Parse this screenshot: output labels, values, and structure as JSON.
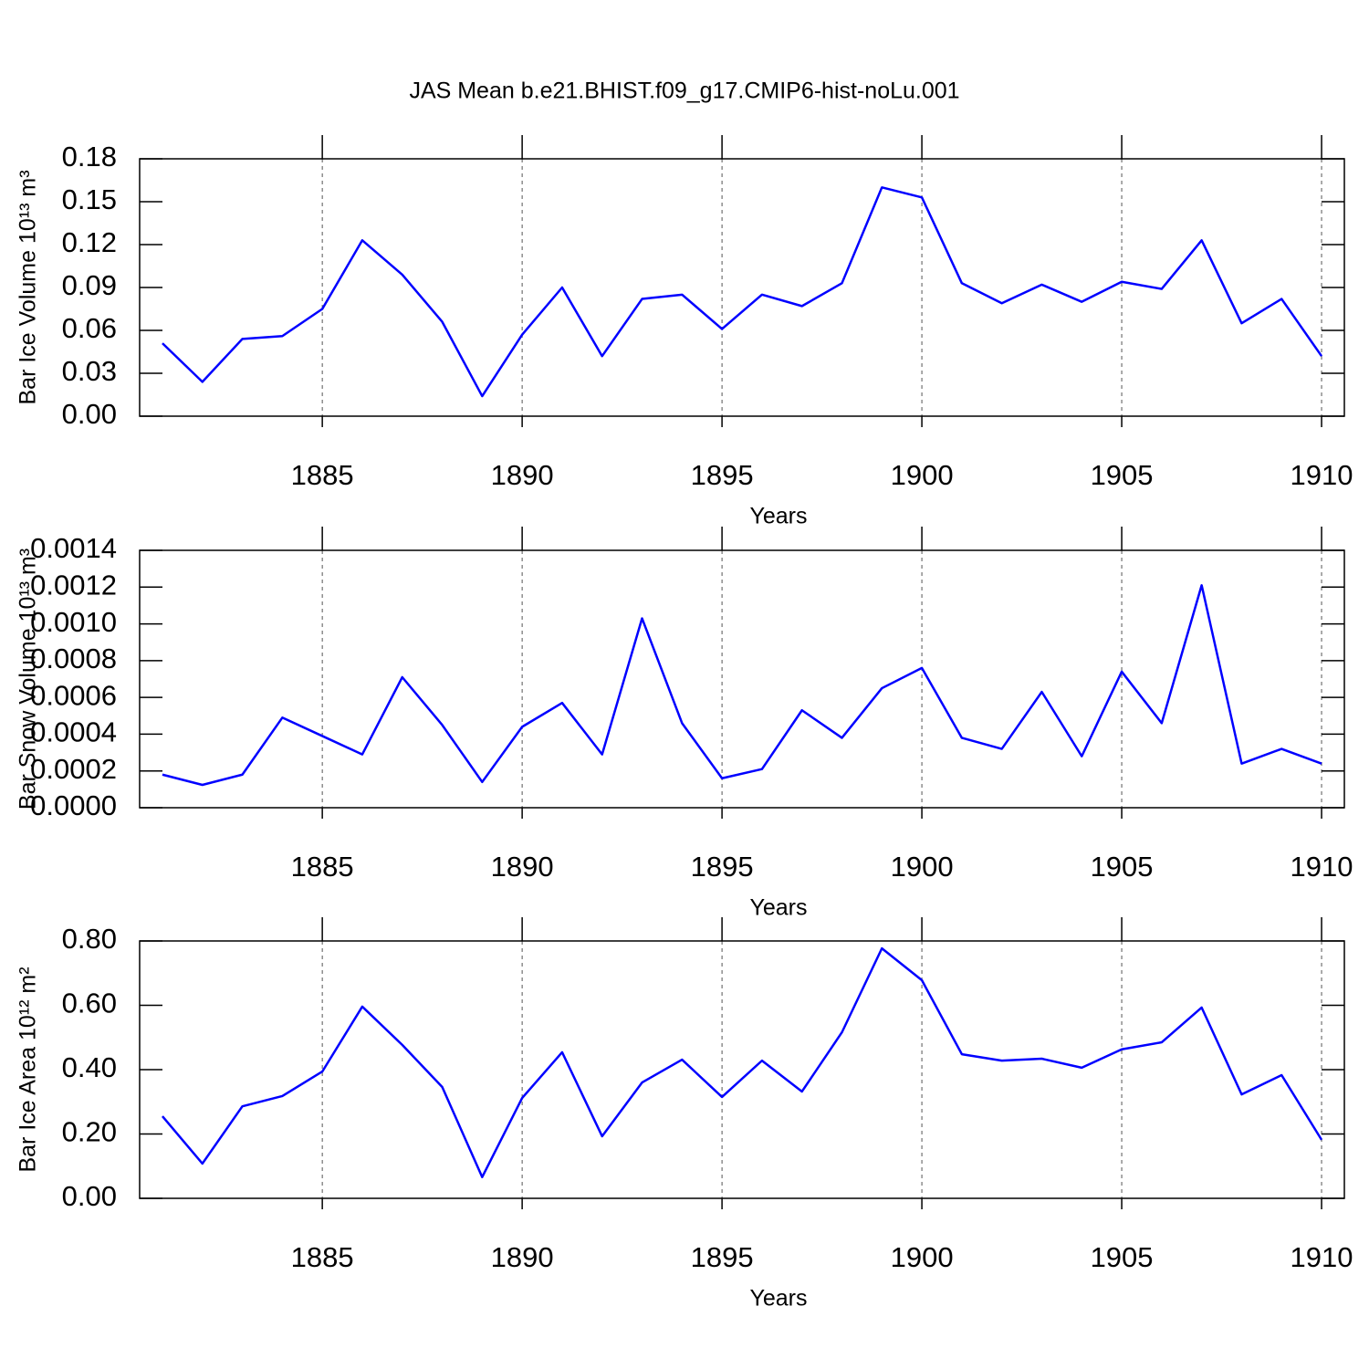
{
  "title": "JAS Mean b.e21.BHIST.f09_g17.CMIP6-hist-noLu.001",
  "chart_data": [
    {
      "type": "line",
      "xlabel": "Years",
      "ylabel": "Bar Ice Volume 10¹³ m³",
      "x": [
        1881,
        1882,
        1883,
        1884,
        1885,
        1886,
        1887,
        1888,
        1889,
        1890,
        1891,
        1892,
        1893,
        1894,
        1895,
        1896,
        1897,
        1898,
        1899,
        1900,
        1901,
        1902,
        1903,
        1904,
        1905,
        1906,
        1907,
        1908,
        1909,
        1910
      ],
      "series": [
        {
          "color": "#0000ff",
          "values": [
            0.051,
            0.024,
            0.054,
            0.056,
            0.075,
            0.123,
            0.099,
            0.066,
            0.014,
            0.057,
            0.09,
            0.042,
            0.082,
            0.085,
            0.061,
            0.085,
            0.077,
            0.093,
            0.16,
            0.153,
            0.093,
            0.079,
            0.092,
            0.08,
            0.094,
            0.089,
            0.123,
            0.065,
            0.082,
            0.042
          ]
        }
      ],
      "xlim": [
        1880.43,
        1910.57
      ],
      "xticks": [
        1885,
        1890,
        1895,
        1900,
        1905,
        1910
      ],
      "ylim": [
        0,
        0.18
      ],
      "yticks": [
        {
          "value": 0,
          "label": "0.00"
        },
        0.03,
        0.06,
        0.09,
        0.12,
        0.15,
        0.18
      ],
      "grid": true
    },
    {
      "type": "line",
      "xlabel": "Years",
      "ylabel": "Bar Snow Volume 10¹³ m³",
      "x": [
        1881,
        1882,
        1883,
        1884,
        1885,
        1886,
        1887,
        1888,
        1889,
        1890,
        1891,
        1892,
        1893,
        1894,
        1895,
        1896,
        1897,
        1898,
        1899,
        1900,
        1901,
        1902,
        1903,
        1904,
        1905,
        1906,
        1907,
        1908,
        1909,
        1910
      ],
      "series": [
        {
          "color": "#0000ff",
          "values": [
            0.00018,
            0.000124,
            0.00018,
            0.00049,
            0.00039,
            0.00029,
            0.00071,
            0.00045,
            0.00014,
            0.00044,
            0.00057,
            0.00029,
            0.00103,
            0.00046,
            0.00016,
            0.00021,
            0.00053,
            0.00038,
            0.00065,
            0.00076,
            0.00038,
            0.00032,
            0.00063,
            0.00028,
            0.00074,
            0.00046,
            0.00121,
            0.00024,
            0.00032,
            0.00024
          ]
        }
      ],
      "xlim": [
        1880.43,
        1910.57
      ],
      "xticks": [
        1885,
        1890,
        1895,
        1900,
        1905,
        1910
      ],
      "ylim": [
        0,
        0.0014
      ],
      "yticks": [
        {
          "value": 0,
          "label": "0.0000"
        },
        0.0002,
        0.0004,
        0.0006,
        0.0008,
        {
          "value": 0.001,
          "label": "0.0010"
        },
        0.0012,
        0.0014
      ],
      "grid": true
    },
    {
      "type": "line",
      "xlabel": "Years",
      "ylabel": "Bar Ice Area 10¹² m²",
      "x": [
        1881,
        1882,
        1883,
        1884,
        1885,
        1886,
        1887,
        1888,
        1889,
        1890,
        1891,
        1892,
        1893,
        1894,
        1895,
        1896,
        1897,
        1898,
        1899,
        1900,
        1901,
        1902,
        1903,
        1904,
        1905,
        1906,
        1907,
        1908,
        1909,
        1910
      ],
      "series": [
        {
          "color": "#0000ff",
          "values": [
            0.255,
            0.108,
            0.286,
            0.318,
            0.394,
            0.596,
            0.477,
            0.346,
            0.066,
            0.312,
            0.454,
            0.193,
            0.36,
            0.431,
            0.315,
            0.428,
            0.332,
            0.516,
            0.777,
            0.678,
            0.448,
            0.428,
            0.434,
            0.406,
            0.463,
            0.485,
            0.593,
            0.323,
            0.383,
            0.182
          ]
        }
      ],
      "xlim": [
        1880.43,
        1910.57
      ],
      "xticks": [
        1885,
        1890,
        1895,
        1900,
        1905,
        1910
      ],
      "ylim": [
        0,
        0.8
      ],
      "yticks": [
        {
          "value": 0,
          "label": "0.00"
        },
        {
          "value": 0.2,
          "label": "0.20"
        },
        {
          "value": 0.4,
          "label": "0.40"
        },
        {
          "value": 0.6,
          "label": "0.60"
        },
        {
          "value": 0.8,
          "label": "0.80"
        }
      ],
      "grid": true
    }
  ]
}
